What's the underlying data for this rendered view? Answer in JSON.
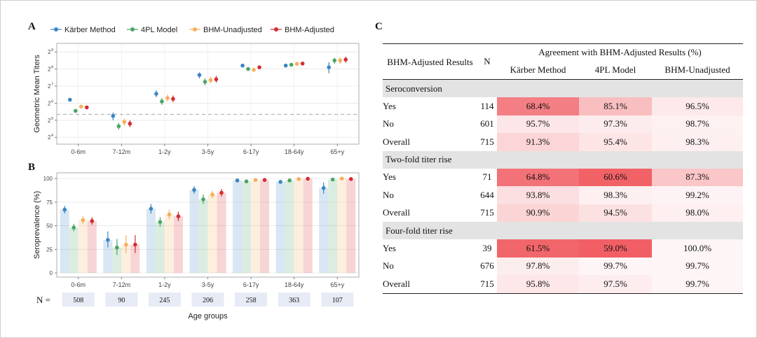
{
  "panels": {
    "A": "A",
    "B": "B",
    "C": "C"
  },
  "colors": {
    "Kärber Method": "#3a86c4",
    "4PL Model": "#4aa564",
    "BHM-Unadjusted": "#f6ae5b",
    "BHM-Adjusted": "#d62a31"
  },
  "chart_data": [
    {
      "type": "scatter",
      "panel": "A",
      "ylabel": "Geometric Mean Titers",
      "y_scale": "log2",
      "ylim": [
        3.6,
        9.5
      ],
      "y_ticks": [
        4,
        5,
        6,
        7,
        8,
        9
      ],
      "y_tick_base": "2",
      "reference_line_log2": 5.35,
      "grid": true,
      "legend_position": "top",
      "categories": [
        "0-6m",
        "7-12m",
        "1-2y",
        "3-5y",
        "6-17y",
        "18-64y",
        "65+y"
      ],
      "series": [
        {
          "name": "Kärber Method",
          "values": [
            6.2,
            5.25,
            6.55,
            7.65,
            8.2,
            8.2,
            8.1
          ],
          "lo": [
            6.15,
            5.0,
            6.35,
            7.45,
            8.1,
            8.12,
            7.75
          ],
          "hi": [
            6.28,
            5.45,
            6.75,
            7.8,
            8.28,
            8.28,
            8.4
          ]
        },
        {
          "name": "4PL Model",
          "values": [
            5.55,
            4.65,
            6.1,
            7.25,
            8.0,
            8.25,
            8.5
          ],
          "lo": [
            5.5,
            4.45,
            5.9,
            7.05,
            7.94,
            8.2,
            8.3
          ],
          "hi": [
            5.6,
            4.85,
            6.3,
            7.45,
            8.06,
            8.3,
            8.65
          ]
        },
        {
          "name": "BHM-Unadjusted",
          "values": [
            5.8,
            4.9,
            6.3,
            7.35,
            7.95,
            8.3,
            8.5
          ],
          "lo": [
            5.74,
            4.7,
            6.1,
            7.15,
            7.88,
            8.24,
            8.3
          ],
          "hi": [
            5.86,
            5.1,
            6.5,
            7.55,
            8.02,
            8.36,
            8.68
          ]
        },
        {
          "name": "BHM-Adjusted",
          "values": [
            5.75,
            4.8,
            6.25,
            7.4,
            8.1,
            8.32,
            8.55
          ],
          "lo": [
            5.69,
            4.6,
            6.05,
            7.2,
            8.04,
            8.27,
            8.38
          ],
          "hi": [
            5.81,
            5.0,
            6.45,
            7.6,
            8.16,
            8.37,
            8.72
          ]
        }
      ]
    },
    {
      "type": "bar",
      "panel": "B",
      "ylabel": "Seroprevalence (%)",
      "xlabel": "Age groups",
      "ylim": [
        0,
        100
      ],
      "y_ticks": [
        0,
        25,
        50,
        75,
        100
      ],
      "grid": true,
      "categories": [
        "0-6m",
        "7-12m",
        "1-2y",
        "3-5y",
        "6-17y",
        "18-64y",
        "65+y"
      ],
      "series": [
        {
          "name": "Kärber Method",
          "values": [
            67,
            35,
            68,
            88,
            98,
            96.5,
            90
          ],
          "lo": [
            63,
            27,
            63,
            84,
            97,
            95.5,
            84
          ],
          "hi": [
            71,
            44,
            73,
            92,
            99,
            97.5,
            96
          ]
        },
        {
          "name": "4PL Model",
          "values": [
            48,
            27,
            54,
            78,
            97,
            98,
            99
          ],
          "lo": [
            44,
            19,
            49,
            73,
            96,
            97,
            98
          ],
          "hi": [
            52,
            36,
            59,
            83,
            98,
            99,
            100
          ]
        },
        {
          "name": "BHM-Unadjusted",
          "values": [
            56,
            30,
            62,
            83,
            98.5,
            99.5,
            100
          ],
          "lo": [
            52,
            21,
            57,
            79,
            97.5,
            99,
            99
          ],
          "hi": [
            60,
            40,
            67,
            87,
            99.5,
            100,
            100
          ]
        },
        {
          "name": "BHM-Adjusted",
          "values": [
            55,
            30,
            60,
            85,
            98.5,
            99.8,
            99.5
          ],
          "lo": [
            51,
            21,
            55,
            81,
            97.5,
            99.4,
            98.5
          ],
          "hi": [
            59,
            40,
            65,
            89,
            99.5,
            100,
            100
          ]
        }
      ],
      "n_label": "N =",
      "n_values": [
        "508",
        "90",
        "245",
        "206",
        "258",
        "363",
        "107"
      ]
    },
    {
      "type": "table",
      "panel": "C",
      "header": {
        "col1": "BHM-Adjusted Results",
        "col_n": "N",
        "group": "Agreement with BHM-Adjusted Results (%)",
        "methods": [
          "Kärber Method",
          "4PL Model",
          "BHM-Unadjusted"
        ]
      },
      "sections": [
        {
          "title": "Seroconversion",
          "rows": [
            {
              "label": "Yes",
              "n": "114",
              "values": [
                "68.4%",
                "85.1%",
                "96.5%"
              ],
              "numbers": [
                68.4,
                85.1,
                96.5
              ]
            },
            {
              "label": "No",
              "n": "601",
              "values": [
                "95.7%",
                "97.3%",
                "98.7%"
              ],
              "numbers": [
                95.7,
                97.3,
                98.7
              ]
            },
            {
              "label": "Overall",
              "n": "715",
              "values": [
                "91.3%",
                "95.4%",
                "98.3%"
              ],
              "numbers": [
                91.3,
                95.4,
                98.3
              ]
            }
          ]
        },
        {
          "title": "Two-fold titer rise",
          "rows": [
            {
              "label": "Yes",
              "n": "71",
              "values": [
                "64.8%",
                "60.6%",
                "87.3%"
              ],
              "numbers": [
                64.8,
                60.6,
                87.3
              ]
            },
            {
              "label": "No",
              "n": "644",
              "values": [
                "93.8%",
                "98.3%",
                "99.2%"
              ],
              "numbers": [
                93.8,
                98.3,
                99.2
              ]
            },
            {
              "label": "Overall",
              "n": "715",
              "values": [
                "90.9%",
                "94.5%",
                "98.0%"
              ],
              "numbers": [
                90.9,
                94.5,
                98.0
              ]
            }
          ]
        },
        {
          "title": "Four-fold titer rise",
          "rows": [
            {
              "label": "Yes",
              "n": "39",
              "values": [
                "61.5%",
                "59.0%",
                "100.0%"
              ],
              "numbers": [
                61.5,
                59.0,
                100.0
              ]
            },
            {
              "label": "No",
              "n": "676",
              "values": [
                "97.8%",
                "99.7%",
                "99.7%"
              ],
              "numbers": [
                97.8,
                99.7,
                99.7
              ]
            },
            {
              "label": "Overall",
              "n": "715",
              "values": [
                "95.8%",
                "97.5%",
                "99.7%"
              ],
              "numbers": [
                95.8,
                97.5,
                99.7
              ]
            }
          ]
        }
      ]
    }
  ]
}
